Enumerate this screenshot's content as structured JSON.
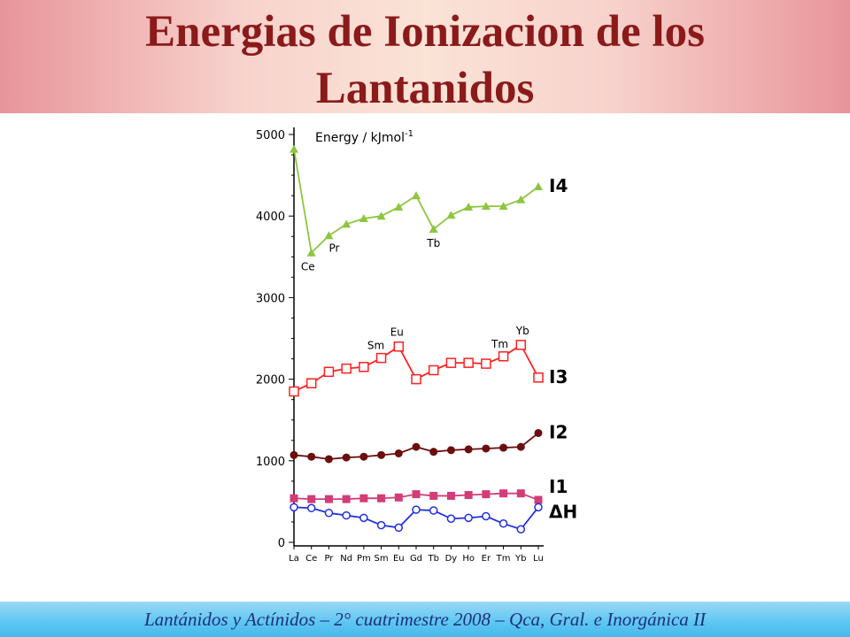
{
  "slide": {
    "title_line1": "Energias de Ionizacion de los",
    "title_line2": "Lantanidos",
    "footer": "Lantánidos y Actínidos – 2° cuatrimestre 2008 – Qca, Gral. e Inorgánica II"
  },
  "colors": {
    "title": "#8b1a1a",
    "I4": "#8dc63f",
    "I3": "#ff2020",
    "I2": "#6b0e0e",
    "I1": "#d23c78",
    "dH": "#2030e0"
  },
  "chart_data": {
    "type": "line",
    "ylabel": "Energy / kJmol-1",
    "ylabel_main": "Energy / kJmol",
    "ylabel_sup": "-1",
    "ylim": [
      0,
      5000
    ],
    "yticks": [
      "0",
      "1000",
      "2000",
      "3000",
      "4000",
      "5000"
    ],
    "ytick_values": [
      0,
      1000,
      2000,
      3000,
      4000,
      5000
    ],
    "categories": [
      "La",
      "Ce",
      "Pr",
      "Nd",
      "Pm",
      "Sm",
      "Eu",
      "Gd",
      "Tb",
      "Dy",
      "Ho",
      "Er",
      "Tm",
      "Yb",
      "Lu"
    ],
    "series": [
      {
        "name": "I4",
        "marker": "triangle",
        "values": [
          4820,
          3550,
          3760,
          3900,
          3970,
          4000,
          4110,
          4250,
          3840,
          4010,
          4110,
          4120,
          4120,
          4200,
          4360
        ]
      },
      {
        "name": "I3",
        "marker": "open-square",
        "values": [
          1850,
          1950,
          2090,
          2130,
          2150,
          2260,
          2400,
          2000,
          2110,
          2200,
          2200,
          2190,
          2280,
          2420,
          2020
        ]
      },
      {
        "name": "I2",
        "marker": "filled-circle",
        "values": [
          1070,
          1050,
          1020,
          1040,
          1050,
          1070,
          1090,
          1170,
          1110,
          1130,
          1140,
          1150,
          1160,
          1170,
          1340
        ]
      },
      {
        "name": "I1",
        "marker": "filled-square",
        "values": [
          540,
          530,
          530,
          530,
          540,
          540,
          550,
          590,
          570,
          570,
          580,
          590,
          600,
          600,
          520
        ]
      },
      {
        "name": "ΔH",
        "marker": "open-circle",
        "values": [
          430,
          420,
          360,
          330,
          300,
          210,
          180,
          400,
          390,
          290,
          300,
          320,
          230,
          160,
          430
        ]
      }
    ],
    "annotations": [
      {
        "text": "Ce",
        "series": "I4",
        "category": "Ce"
      },
      {
        "text": "Pr",
        "series": "I4",
        "category": "Pr"
      },
      {
        "text": "Tb",
        "series": "I4",
        "category": "Tb"
      },
      {
        "text": "Sm",
        "series": "I3",
        "category": "Sm"
      },
      {
        "text": "Eu",
        "series": "I3",
        "category": "Eu"
      },
      {
        "text": "Tm",
        "series": "I3",
        "category": "Tm"
      },
      {
        "text": "Yb",
        "series": "I3",
        "category": "Yb"
      }
    ],
    "legend_placement": "right-end-of-lines",
    "grid": false
  }
}
